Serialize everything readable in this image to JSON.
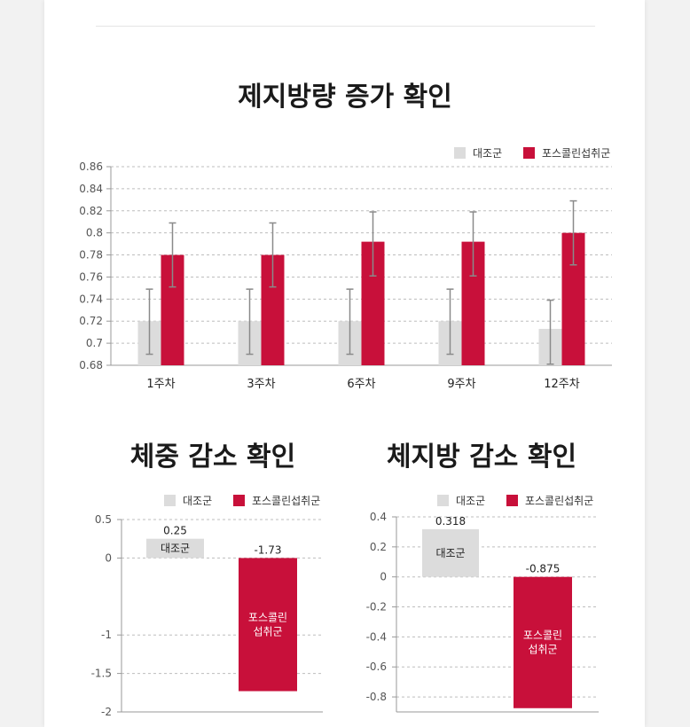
{
  "colors": {
    "control": "#dcdcdc",
    "treatment": "#c8103a",
    "grid": "#bdbdbd",
    "axis": "#999999",
    "error_bar": "#8a8a8a"
  },
  "chart_data": [
    {
      "type": "bar",
      "title": "제지방량 증가 확인",
      "categories": [
        "1주차",
        "3주차",
        "6주차",
        "9주차",
        "12주차"
      ],
      "series": [
        {
          "name": "대조군",
          "values": [
            0.72,
            0.72,
            0.72,
            0.72,
            0.713
          ],
          "error": [
            [
              0.69,
              0.749
            ],
            [
              0.69,
              0.749
            ],
            [
              0.69,
              0.749
            ],
            [
              0.69,
              0.749
            ],
            [
              0.681,
              0.739
            ]
          ]
        },
        {
          "name": "포스콜린섭취군",
          "values": [
            0.78,
            0.78,
            0.792,
            0.792,
            0.8
          ],
          "error": [
            [
              0.751,
              0.809
            ],
            [
              0.751,
              0.809
            ],
            [
              0.761,
              0.819
            ],
            [
              0.761,
              0.819
            ],
            [
              0.771,
              0.829
            ]
          ]
        }
      ],
      "ylim": [
        0.68,
        0.86
      ],
      "yticks": [
        "0.68",
        "0.7",
        "0.72",
        "0.74",
        "0.76",
        "0.78",
        "0.8",
        "0.82",
        "0.84",
        "0.86"
      ],
      "grid": true,
      "legend": "top-right"
    },
    {
      "type": "bar",
      "title": "체중 감소 확인",
      "series": [
        {
          "name": "대조군",
          "value": 0.25,
          "value_label": "0.25",
          "bar_label": "대조군"
        },
        {
          "name": "포스콜린섭취군",
          "value": -1.73,
          "value_label": "-1.73",
          "bar_label": [
            "포스콜린",
            "섭취군"
          ]
        }
      ],
      "ylim": [
        -2,
        0.5
      ],
      "yticks": [
        "0.5",
        "0",
        "-1",
        "-1.5",
        "-2"
      ],
      "grid": true,
      "legend": "top-right"
    },
    {
      "type": "bar",
      "title": "체지방 감소 확인",
      "series": [
        {
          "name": "대조군",
          "value": 0.318,
          "value_label": "0.318",
          "bar_label": "대조군"
        },
        {
          "name": "포스콜린섭취군",
          "value": -0.875,
          "value_label": "-0.875",
          "bar_label": [
            "포스콜린",
            "섭취군"
          ]
        }
      ],
      "ylim": [
        -0.9,
        0.4
      ],
      "yticks": [
        "0.4",
        "0.2",
        "0",
        "-0.2",
        "-0.4",
        "-0.6",
        "-0.8"
      ],
      "grid": true,
      "legend": "top-right"
    }
  ]
}
